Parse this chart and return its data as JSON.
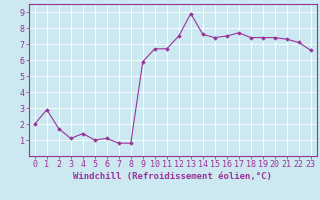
{
  "x": [
    0,
    1,
    2,
    3,
    4,
    5,
    6,
    7,
    8,
    9,
    10,
    11,
    12,
    13,
    14,
    15,
    16,
    17,
    18,
    19,
    20,
    21,
    22,
    23
  ],
  "y": [
    2.0,
    2.9,
    1.7,
    1.1,
    1.4,
    1.0,
    1.1,
    0.8,
    0.8,
    5.9,
    6.7,
    6.7,
    7.5,
    8.9,
    7.6,
    7.4,
    7.5,
    7.7,
    7.4,
    7.4,
    7.4,
    7.3,
    7.1,
    6.6
  ],
  "line_color": "#993399",
  "marker": "D",
  "marker_size": 1.8,
  "linewidth": 0.8,
  "xlabel": "Windchill (Refroidissement éolien,°C)",
  "xlim": [
    -0.5,
    23.5
  ],
  "ylim": [
    0,
    9.5
  ],
  "yticks": [
    1,
    2,
    3,
    4,
    5,
    6,
    7,
    8,
    9
  ],
  "xticks": [
    0,
    1,
    2,
    3,
    4,
    5,
    6,
    7,
    8,
    9,
    10,
    11,
    12,
    13,
    14,
    15,
    16,
    17,
    18,
    19,
    20,
    21,
    22,
    23
  ],
  "bg_color": "#cce8f0",
  "grid_color": "#ffffff",
  "border_color": "#993399",
  "label_color": "#993399",
  "xlabel_fontsize": 6.5,
  "tick_fontsize": 6.0
}
